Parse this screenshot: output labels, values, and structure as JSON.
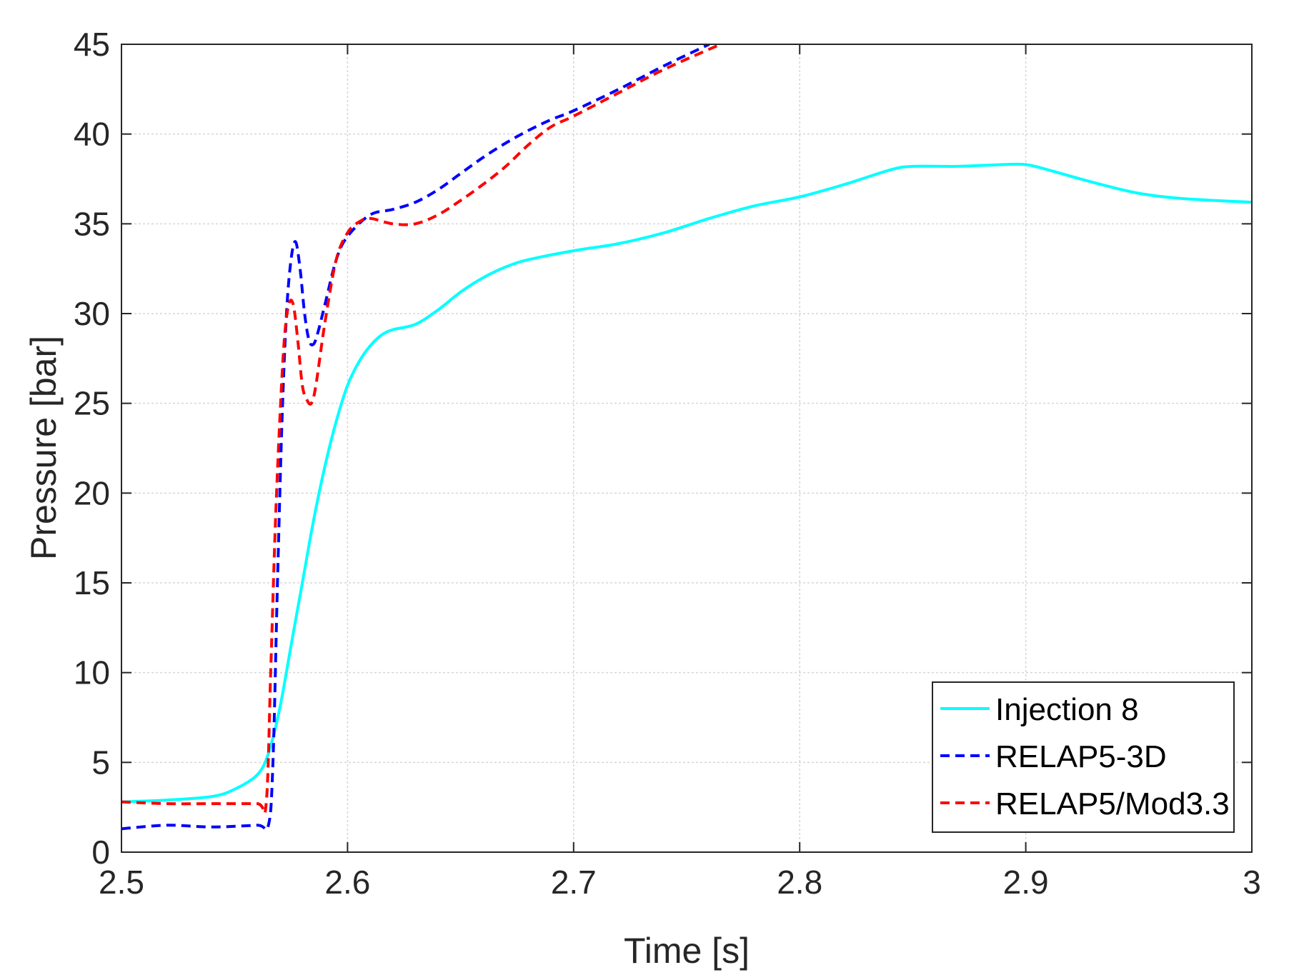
{
  "chart_data": {
    "type": "line",
    "title": "",
    "xlabel": "Time [s]",
    "ylabel": "Pressure [bar]",
    "xlim": [
      2.5,
      3.0
    ],
    "ylim": [
      0,
      45
    ],
    "xticks": [
      2.5,
      2.6,
      2.7,
      2.8,
      2.9,
      3.0
    ],
    "xtick_labels": [
      "2.5",
      "2.6",
      "2.7",
      "2.8",
      "2.9",
      "3"
    ],
    "yticks": [
      0,
      5,
      10,
      15,
      20,
      25,
      30,
      35,
      40,
      45
    ],
    "ytick_labels": [
      "0",
      "5",
      "10",
      "15",
      "20",
      "25",
      "30",
      "35",
      "40",
      "45"
    ],
    "grid": true,
    "legend_position": "bottom-right",
    "series": [
      {
        "name": "Injection 8",
        "color": "#00ffff",
        "style": "solid",
        "x": [
          2.5,
          2.52,
          2.54,
          2.55,
          2.56,
          2.565,
          2.57,
          2.575,
          2.58,
          2.585,
          2.59,
          2.595,
          2.6,
          2.605,
          2.61,
          2.615,
          2.62,
          2.63,
          2.64,
          2.65,
          2.66,
          2.67,
          2.68,
          2.7,
          2.72,
          2.74,
          2.76,
          2.78,
          2.8,
          2.82,
          2.84,
          2.85,
          2.87,
          2.89,
          2.9,
          2.91,
          2.93,
          2.95,
          2.97,
          3.0
        ],
        "y": [
          2.8,
          2.9,
          3.1,
          3.5,
          4.3,
          5.5,
          8.0,
          11.5,
          15.0,
          18.5,
          21.5,
          24.0,
          26.0,
          27.3,
          28.2,
          28.8,
          29.1,
          29.4,
          30.2,
          31.2,
          32.0,
          32.6,
          33.0,
          33.5,
          33.9,
          34.5,
          35.3,
          36.0,
          36.5,
          37.2,
          38.0,
          38.2,
          38.2,
          38.3,
          38.3,
          38.0,
          37.3,
          36.7,
          36.4,
          36.2
        ]
      },
      {
        "name": "RELAP5-3D",
        "color": "#0000ff",
        "style": "dashed",
        "x": [
          2.5,
          2.52,
          2.54,
          2.56,
          2.565,
          2.567,
          2.569,
          2.571,
          2.573,
          2.575,
          2.577,
          2.579,
          2.581,
          2.583,
          2.585,
          2.587,
          2.59,
          2.595,
          2.6,
          2.61,
          2.62,
          2.63,
          2.64,
          2.65,
          2.66,
          2.67,
          2.68,
          2.69,
          2.7,
          2.72,
          2.74,
          2.76
        ],
        "y": [
          1.3,
          1.5,
          1.4,
          1.5,
          1.5,
          5.0,
          15.0,
          24.0,
          30.0,
          33.0,
          34.0,
          32.5,
          30.0,
          28.5,
          28.3,
          29.0,
          30.5,
          33.0,
          34.3,
          35.5,
          35.8,
          36.2,
          36.9,
          37.8,
          38.7,
          39.5,
          40.2,
          40.8,
          41.3,
          42.5,
          43.8,
          45.0
        ]
      },
      {
        "name": "RELAP5/Mod3.3",
        "color": "#ff0000",
        "style": "dashed",
        "x": [
          2.5,
          2.52,
          2.54,
          2.56,
          2.564,
          2.566,
          2.568,
          2.57,
          2.572,
          2.574,
          2.576,
          2.578,
          2.58,
          2.582,
          2.584,
          2.586,
          2.59,
          2.595,
          2.6,
          2.605,
          2.61,
          2.62,
          2.63,
          2.64,
          2.65,
          2.66,
          2.67,
          2.68,
          2.69,
          2.7,
          2.72,
          2.74,
          2.765
        ],
        "y": [
          2.8,
          2.7,
          2.7,
          2.7,
          2.7,
          10.0,
          18.0,
          24.0,
          28.5,
          30.5,
          30.5,
          28.5,
          26.0,
          25.2,
          25.0,
          26.0,
          29.5,
          33.0,
          34.5,
          35.1,
          35.3,
          35.0,
          35.0,
          35.5,
          36.3,
          37.2,
          38.2,
          39.4,
          40.4,
          41.0,
          42.3,
          43.6,
          45.0
        ]
      }
    ]
  }
}
